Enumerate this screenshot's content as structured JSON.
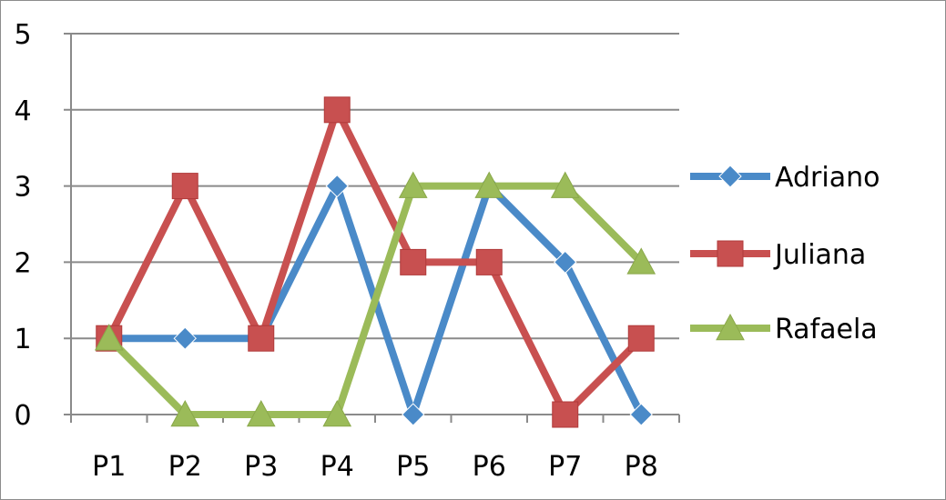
{
  "chart_data": {
    "type": "line",
    "categories": [
      "P1",
      "P2",
      "P3",
      "P4",
      "P5",
      "P6",
      "P7",
      "P8"
    ],
    "series": [
      {
        "name": "Adriano",
        "values": [
          1,
          1,
          1,
          3,
          0,
          3,
          2,
          0
        ],
        "color": "#4a8ac8",
        "marker": "diamond"
      },
      {
        "name": "Juliana",
        "values": [
          1,
          3,
          1,
          4,
          2,
          2,
          0,
          1
        ],
        "color": "#c85050",
        "marker": "square"
      },
      {
        "name": "Rafaela",
        "values": [
          1,
          0,
          0,
          0,
          3,
          3,
          3,
          2
        ],
        "color": "#9bbb59",
        "marker": "triangle"
      }
    ],
    "yticks": [
      "0",
      "1",
      "2",
      "3",
      "4",
      "5"
    ],
    "ylim": [
      0,
      5
    ],
    "grid": true,
    "legend": "right"
  }
}
